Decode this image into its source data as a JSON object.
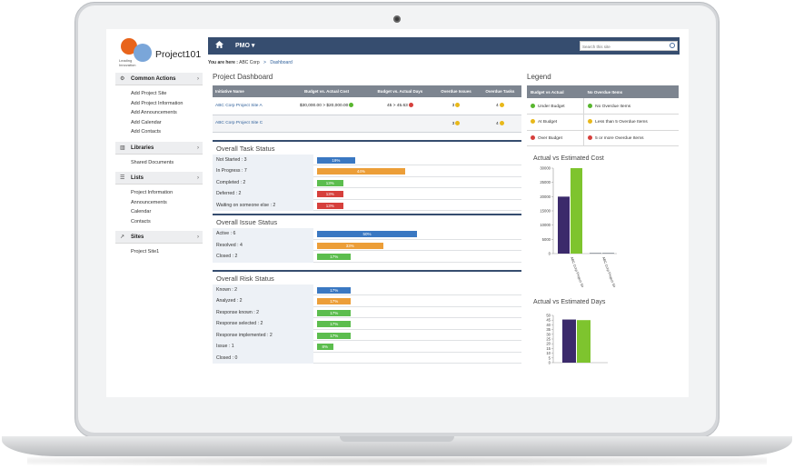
{
  "logo": {
    "name": "Project101",
    "tagline": "Leading Innovation"
  },
  "nav": {
    "menu_label": "PMO ▾",
    "search_placeholder": "Search this site"
  },
  "breadcrumb": {
    "prefix": "You are here :",
    "site": "ABC Corp",
    "current": "Dashboard"
  },
  "sidebar": [
    {
      "title": "Common Actions",
      "icon": "gear-icon",
      "items": [
        "Add Project Site",
        "Add Project Information",
        "Add Announcements",
        "Add Calendar",
        "Add Contacts"
      ]
    },
    {
      "title": "Libraries",
      "icon": "book-icon",
      "items": [
        "Shared Documents"
      ]
    },
    {
      "title": "Lists",
      "icon": "list-icon",
      "items": [
        "Project Information",
        "Announcements",
        "Calendar",
        "Contacts"
      ]
    },
    {
      "title": "Sites",
      "icon": "external-link-icon",
      "items": [
        "Project Site1"
      ]
    }
  ],
  "dashboard": {
    "title": "Project Dashboard",
    "columns": [
      "Initiative Name",
      "Budget vs. Actual Cost",
      "Budget vs. Actual Days",
      "Overdue Issues",
      "Overdue Tasks"
    ],
    "rows": [
      {
        "name": "ABC Corp Project Site A",
        "budget_cost": "$30,000.00 > $20,000.00",
        "budget_status": "green",
        "days": "45 > 45.63",
        "days_status": "red",
        "issues": "3",
        "issues_status": "yellow",
        "tasks": "4",
        "tasks_status": "yellow"
      },
      {
        "name": "ABC Corp Project Site C",
        "budget_cost": "",
        "budget_status": "",
        "days": "",
        "days_status": "",
        "issues": "3",
        "issues_status": "yellow",
        "tasks": "4",
        "tasks_status": "yellow"
      }
    ]
  },
  "task_status": {
    "title": "Overall Task Status",
    "rows": [
      {
        "label": "Not Started : 3",
        "pct": "19%",
        "value": 19,
        "color": "blue"
      },
      {
        "label": "In Progress : 7",
        "pct": "44%",
        "value": 44,
        "color": "orange"
      },
      {
        "label": "Completed : 2",
        "pct": "13%",
        "value": 13,
        "color": "green"
      },
      {
        "label": "Deferred : 2",
        "pct": "13%",
        "value": 13,
        "color": "red"
      },
      {
        "label": "Waiting on someone else : 2",
        "pct": "13%",
        "value": 13,
        "color": "red"
      }
    ]
  },
  "issue_status": {
    "title": "Overall Issue Status",
    "rows": [
      {
        "label": "Active : 6",
        "pct": "50%",
        "value": 50,
        "color": "blue"
      },
      {
        "label": "Resolved : 4",
        "pct": "33%",
        "value": 33,
        "color": "orange"
      },
      {
        "label": "Closed : 2",
        "pct": "17%",
        "value": 17,
        "color": "green"
      }
    ]
  },
  "risk_status": {
    "title": "Overall Risk Status",
    "rows": [
      {
        "label": "Known : 2",
        "pct": "17%",
        "value": 17,
        "color": "blue"
      },
      {
        "label": "Analyzed : 2",
        "pct": "17%",
        "value": 17,
        "color": "orange"
      },
      {
        "label": "Response known : 2",
        "pct": "17%",
        "value": 17,
        "color": "green"
      },
      {
        "label": "Response selected : 2",
        "pct": "17%",
        "value": 17,
        "color": "green"
      },
      {
        "label": "Response implemented : 2",
        "pct": "17%",
        "value": 17,
        "color": "green"
      },
      {
        "label": "Issue : 1",
        "pct": "8%",
        "value": 8,
        "color": "green"
      },
      {
        "label": "Closed : 0",
        "pct": "",
        "value": 0,
        "color": "green"
      }
    ]
  },
  "legend": {
    "title": "Legend",
    "headers": [
      "Budget vs Actual",
      "No Overdue Items"
    ],
    "rows": [
      {
        "left": "Under Budget",
        "left_color": "green",
        "right": "No Overdue Items",
        "right_color": "green"
      },
      {
        "left": "At Budget",
        "left_color": "yellow",
        "right": "Less than 5 Overdue Items",
        "right_color": "yellow"
      },
      {
        "left": "Over Budget",
        "left_color": "red",
        "right": "5 or more Overdue Items",
        "right_color": "red"
      }
    ]
  },
  "colors": {
    "nav": "#364d6f",
    "blue": "#3a78c2",
    "orange": "#ec9e38",
    "green": "#5cbd4e",
    "red": "#d6403c",
    "yellow": "#e8b81a",
    "purple": "#3b2a6b",
    "lime": "#7ec42e"
  },
  "chart_data": [
    {
      "type": "bar",
      "title": "Actual vs Estimated Cost",
      "categories": [
        "ABC Corp Project Site A",
        "ABC Corp Project Site C"
      ],
      "series": [
        {
          "values": [
            20000,
            0
          ]
        },
        {
          "values": [
            30000,
            0
          ]
        }
      ],
      "yticks": [
        0,
        5000,
        10000,
        15000,
        20000,
        25000,
        30000
      ],
      "ytick_labels": [
        "0",
        "5000",
        "10000",
        "15000",
        "20000",
        "25000",
        "30000"
      ],
      "ylim": [
        0,
        30000
      ],
      "xlabel": "",
      "ylabel": ""
    },
    {
      "type": "bar",
      "title": "Actual vs Estimated Days",
      "categories": [
        ""
      ],
      "series": [
        {
          "values": [
            45.63
          ]
        },
        {
          "values": [
            45
          ]
        }
      ],
      "yticks": [
        0,
        5,
        10,
        15,
        20,
        25,
        30,
        35,
        40,
        45,
        50
      ],
      "ytick_labels": [
        "0",
        "5",
        "10",
        "15",
        "20",
        "25",
        "30",
        "35",
        "40",
        "45",
        "50"
      ],
      "ylim": [
        0,
        50
      ],
      "xlabel": "",
      "ylabel": ""
    }
  ]
}
